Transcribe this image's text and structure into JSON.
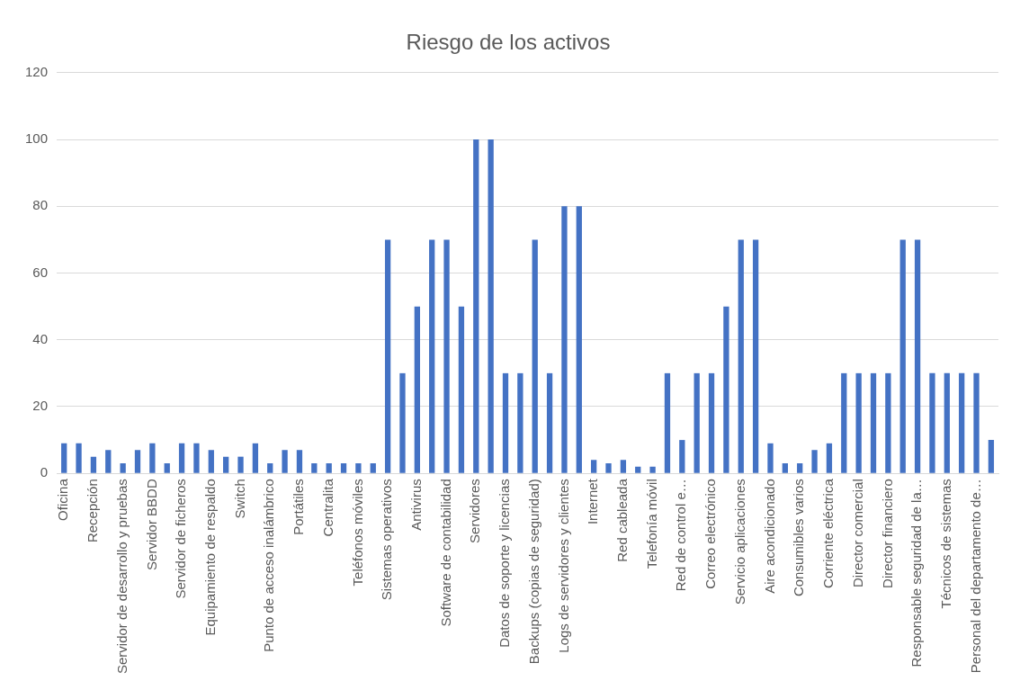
{
  "chart_data": {
    "type": "bar",
    "title": "Riesgo de los activos",
    "categories": [
      "Oficina",
      null,
      "Recepción",
      null,
      "Servidor de desarrollo y pruebas",
      null,
      "Servidor BBDD",
      null,
      "Servidor de ficheros",
      null,
      "Equipamiento de respaldo",
      null,
      "Switch",
      null,
      "Punto de acceso inalámbrico",
      null,
      "Portátiles",
      null,
      "Centralita",
      null,
      "Teléfonos móviles",
      null,
      "Sistemas operativos",
      null,
      "Antivirus",
      null,
      "Software de contabilidad",
      null,
      "Servidores",
      null,
      "Datos de soporte y licencias",
      null,
      "Backups (copias de seguridad)",
      null,
      "Logs de servidores y clientes",
      null,
      "Internet",
      null,
      "Red cableada",
      null,
      "Telefonía móvil",
      null,
      "Red de control e…",
      null,
      "Correo electrónico",
      null,
      "Servicio aplicaciones",
      null,
      "Aire acondicionado",
      null,
      "Consumibles varios",
      null,
      "Corriente eléctrica",
      null,
      "Director comercial",
      null,
      "Director financiero",
      null,
      "Responsable seguridad de la…",
      null,
      "Técnicos de sistemas",
      null,
      "Personal del departamento de…",
      null
    ],
    "values": [
      9,
      9,
      5,
      7,
      3,
      7,
      9,
      3,
      9,
      9,
      7,
      5,
      5,
      9,
      3,
      7,
      7,
      3,
      3,
      3,
      3,
      3,
      70,
      30,
      50,
      70,
      70,
      50,
      100,
      100,
      30,
      30,
      70,
      30,
      80,
      80,
      4,
      3,
      4,
      2,
      2,
      30,
      10,
      30,
      30,
      50,
      70,
      70,
      9,
      3,
      3,
      7,
      9,
      30,
      30,
      30,
      30,
      70,
      70,
      30,
      30,
      30,
      30,
      10
    ],
    "color": "#4472c4",
    "ylim": [
      0,
      120
    ],
    "yticks": [
      0,
      20,
      40,
      60,
      80,
      100,
      120
    ],
    "grid": "y"
  }
}
